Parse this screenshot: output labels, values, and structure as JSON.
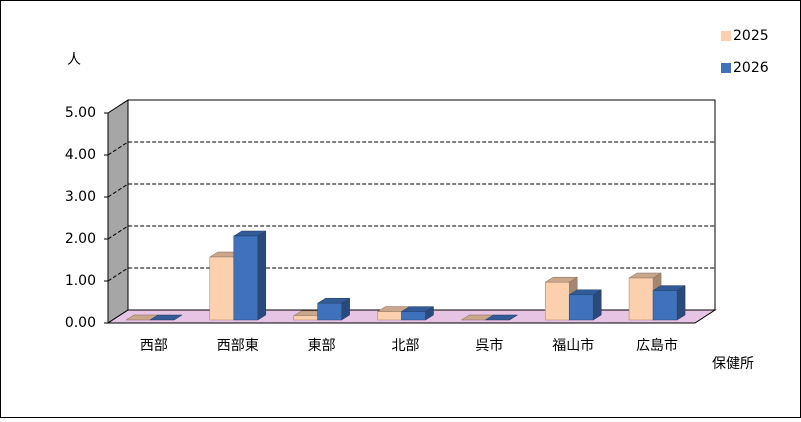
{
  "chart_data": {
    "type": "bar3d",
    "y_label": "人",
    "x_label": "保健所",
    "categories": [
      "西部",
      "西部東",
      "東部",
      "北部",
      "呉市",
      "福山市",
      "広島市"
    ],
    "series": [
      {
        "name": "2025",
        "color": "#fcd0ad",
        "values": [
          0,
          1.5,
          0.1,
          0.2,
          0,
          0.9,
          1.0
        ]
      },
      {
        "name": "2026",
        "color": "#3f72bd",
        "values": [
          0,
          2.0,
          0.4,
          0.2,
          0,
          0.6,
          0.7
        ]
      }
    ],
    "ylim": [
      0,
      5
    ],
    "yticks": [
      {
        "value": 0,
        "label": "0.00"
      },
      {
        "value": 1,
        "label": "1.00"
      },
      {
        "value": 2,
        "label": "2.00"
      },
      {
        "value": 3,
        "label": "3.00"
      },
      {
        "value": 4,
        "label": "4.00"
      },
      {
        "value": 5,
        "label": "5.00"
      }
    ],
    "grid": true,
    "legend": "top-right"
  }
}
